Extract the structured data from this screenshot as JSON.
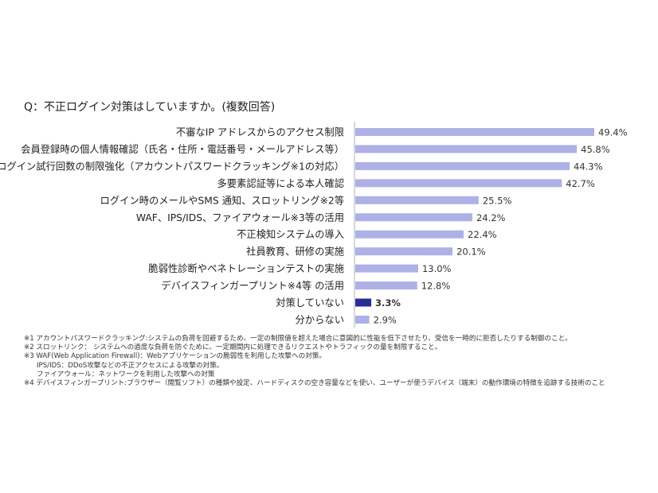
{
  "chart_data": {
    "type": "bar",
    "orientation": "horizontal",
    "title": "Q：不正ログイン対策はしていますか。(複数回答)",
    "categories": [
      "不審なIP アドレスからのアクセス制限",
      "会員登録時の個人情報確認（氏名・住所・電話番号・メールアドレス等）",
      "ログイン試行回数の制限強化（アカウントパスワードクラッキング※1の対応）",
      "多要素認証等による本人確認",
      "ログイン時のメールやSMS 通知、スロットリング※2等",
      "WAF、IPS/IDS、ファイアウォール※3等の活用",
      "不正検知システムの導入",
      "社員教育、研修の実施",
      "脆弱性診断やペネトレーションテストの実施",
      "デバイスフィンガープリント※4等 の活用",
      "対策していない",
      "分からない"
    ],
    "values": [
      49.4,
      45.8,
      44.3,
      42.7,
      25.5,
      24.2,
      22.4,
      20.1,
      13.0,
      12.8,
      3.3,
      2.9
    ],
    "value_labels": [
      "49.4%",
      "45.8%",
      "44.3%",
      "42.7%",
      "25.5%",
      "24.2%",
      "22.4%",
      "20.1%",
      "13.0%",
      "12.8%",
      "3.3%",
      "2.9%"
    ],
    "highlight_index": 10,
    "colors": {
      "bar": "#adb1e6",
      "highlight": "#262f96",
      "axis": "#cccccc"
    },
    "grid": false,
    "legend": "none"
  },
  "footnotes": [
    "※1 アカウントパスワードクラッキング:システムの負荷を回避するため、一定の制限値を超えた場合に意図的に性能を低下させたり、受信を一時的に拒否したりする制御のこと。",
    "※2 スロットリンク： システムへの過度な負荷を防ぐために、一定期間内に処理できるリクエストやトラフィックの量を制限すること。",
    "※3 WAF(Web Application Firewall)：Webアプリケーションの脆弱性を利用した攻撃への対策。",
    "IPS/IDS：DDoS攻撃などの不正アクセスによる攻撃の対策。",
    "ファイアウォール：ネットワークを利用した攻撃への対策",
    "※4 デバイスフィンガープリント:ブラウザー（閲覧ソフト）の種類や設定、ハードディスクの空き容量などを使い、ユーザーが使うデバイス（端末）の動作環境の特徴を追跡する技術のこと"
  ]
}
